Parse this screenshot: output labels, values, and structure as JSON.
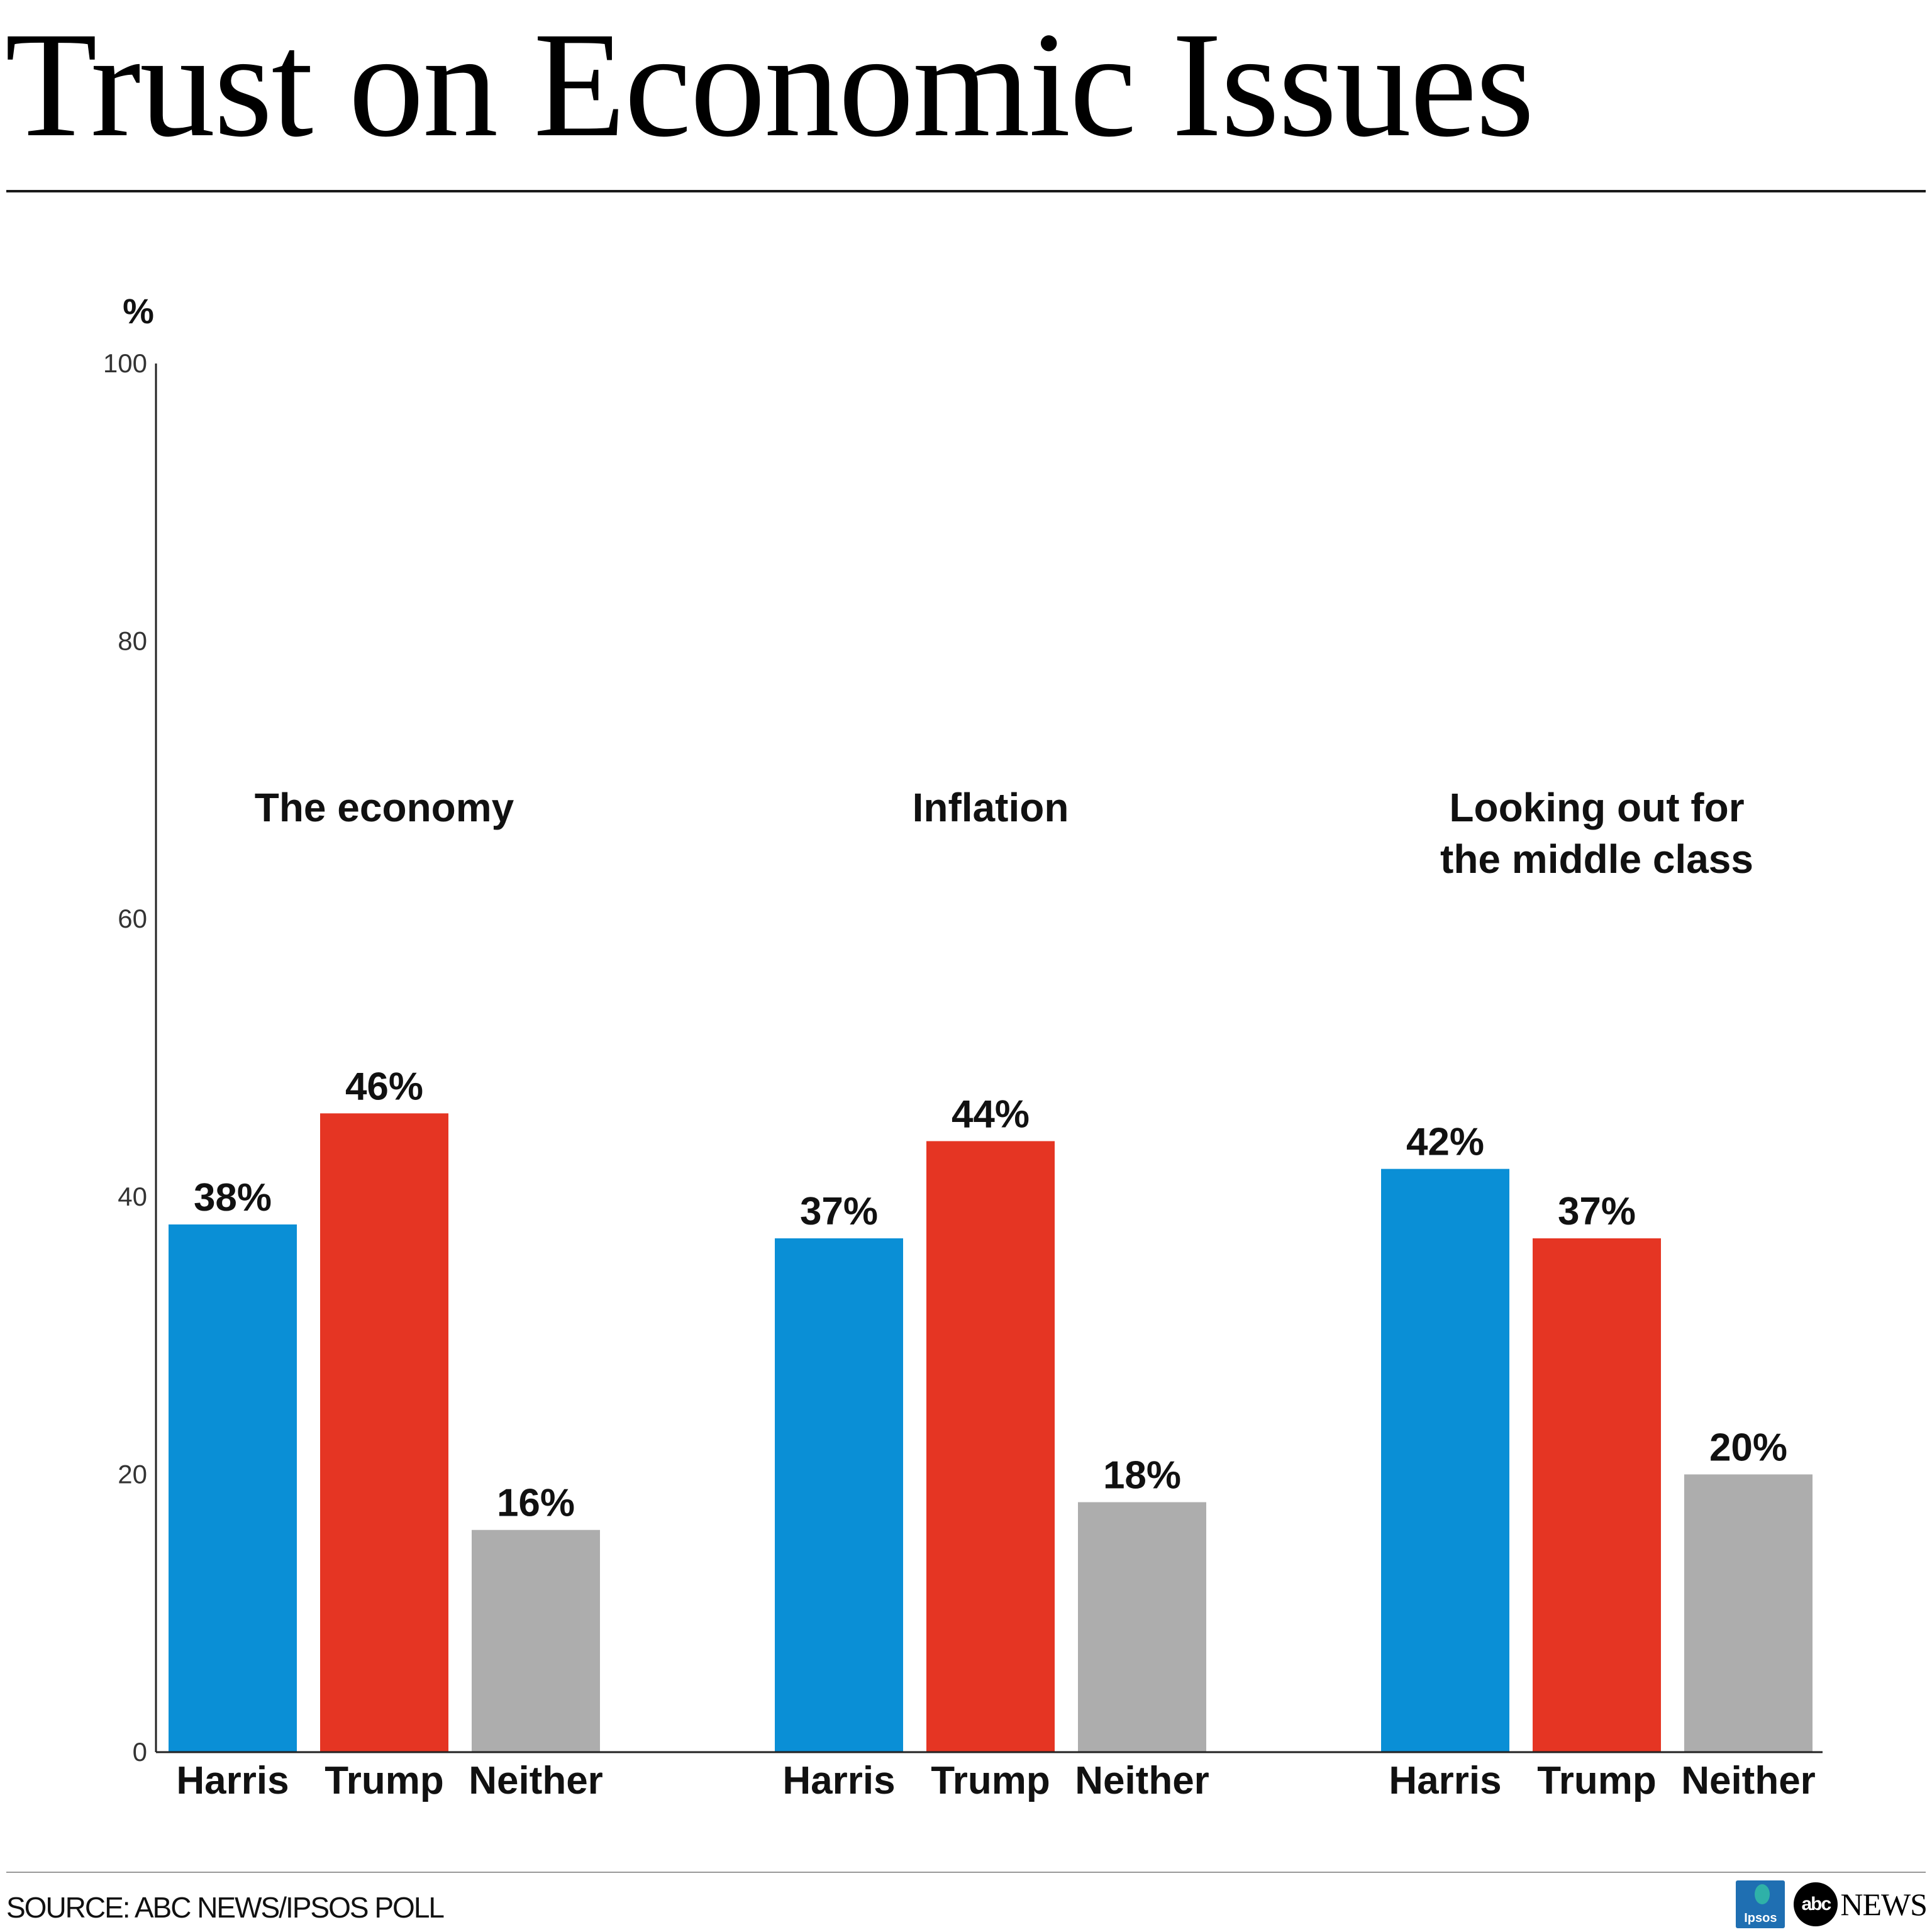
{
  "title": "Trust on Economic Issues",
  "source": "SOURCE: ABC NEWS/IPSOS POLL",
  "logos": {
    "ipsos": "Ipsos",
    "abc_circle": "abc",
    "abc_news": "NEWS"
  },
  "colors": {
    "harris": "#0a8fd6",
    "trump": "#e53523",
    "neither": "#adadad",
    "axis": "#222222",
    "tick_text": "#333333"
  },
  "chart_data": {
    "type": "bar",
    "ylabel": "%",
    "ylim": [
      0,
      100
    ],
    "yticks": [
      0,
      20,
      40,
      60,
      80,
      100
    ],
    "grid": false,
    "bar_labels": [
      "Harris",
      "Trump",
      "Neither"
    ],
    "groups": [
      {
        "title_lines": [
          "The economy"
        ],
        "values": [
          38,
          46,
          16
        ],
        "value_labels": [
          "38%",
          "46%",
          "16%"
        ]
      },
      {
        "title_lines": [
          "Inflation"
        ],
        "values": [
          37,
          44,
          18
        ],
        "value_labels": [
          "37%",
          "44%",
          "18%"
        ]
      },
      {
        "title_lines": [
          "Looking out for",
          "the middle class"
        ],
        "values": [
          42,
          37,
          20
        ],
        "value_labels": [
          "42%",
          "37%",
          "20%"
        ]
      }
    ]
  }
}
